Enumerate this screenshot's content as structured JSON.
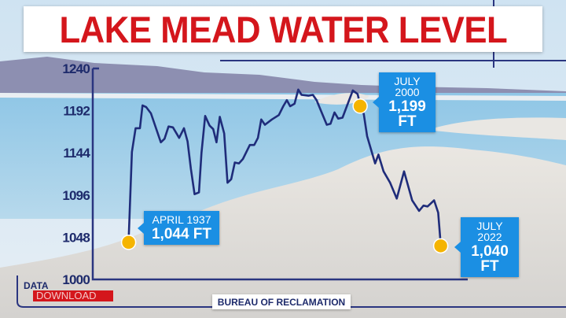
{
  "title": "LAKE MEAD WATER LEVEL",
  "source": "BUREAU OF RECLAMATION",
  "logo": {
    "line1": "DATA",
    "line2": "DOWNLOAD"
  },
  "colors": {
    "title": "#d4161c",
    "line": "#1f2c7a",
    "callout": "#1b8fe3",
    "marker": "#f5b400"
  },
  "chart_data": {
    "type": "line",
    "title": "LAKE MEAD WATER LEVEL",
    "xlabel": "",
    "ylabel": "",
    "ylim": [
      1000,
      1240
    ],
    "yticks": [
      1000,
      1048,
      1096,
      1144,
      1192,
      1240
    ],
    "xlim": [
      1928,
      2030
    ],
    "grid": false,
    "series": [
      {
        "x": [
          1937.3,
          1938.2,
          1939.2,
          1940.4,
          1941.1,
          1942.1,
          1943.4,
          1946.1,
          1947.1,
          1948.2,
          1949.4,
          1951.1,
          1952.4,
          1953.4,
          1954.3,
          1955.3,
          1956.5,
          1957.2,
          1958.2,
          1959.4,
          1960.4,
          1961.3,
          1962.2,
          1963.4,
          1964.3,
          1965.3,
          1966.3,
          1967.4,
          1968.5,
          1970.4,
          1971.6,
          1972.6,
          1973.5,
          1974.5,
          1976.4,
          1978.3,
          1979.5,
          1980.5,
          1981.4,
          1982.6,
          1983.6,
          1984.5,
          1986.4,
          1987.6,
          1988.6,
          1989.9,
          1991.4,
          1992.4,
          1993.5,
          1994.5,
          1995.7,
          1998.5,
          1999.8,
          2000.5,
          2001.5,
          2002.4,
          2004.6,
          2005.5,
          2006.9,
          2008.7,
          2010.5,
          2012.5,
          2014.7,
          2016.6,
          2017.8,
          2018.9,
          2020.7,
          2021.8,
          2022.5
        ],
        "y": [
          1044,
          1145,
          1172,
          1172,
          1198,
          1196,
          1189,
          1156,
          1160,
          1174,
          1173,
          1161,
          1172,
          1157,
          1126,
          1097,
          1099,
          1144,
          1186,
          1175,
          1171,
          1156,
          1185,
          1166,
          1110,
          1114,
          1133,
          1132,
          1137,
          1153,
          1153,
          1161,
          1182,
          1176,
          1182,
          1187,
          1197,
          1204,
          1197,
          1200,
          1216,
          1210,
          1209,
          1210,
          1204,
          1191,
          1176,
          1177,
          1190,
          1183,
          1184,
          1215,
          1211,
          1199,
          1188,
          1163,
          1132,
          1142,
          1123,
          1110,
          1092,
          1123,
          1090,
          1078,
          1084,
          1083,
          1090,
          1076,
          1040
        ]
      }
    ],
    "annotations": [
      {
        "date": "APRIL 1937",
        "value": "1,044 FT",
        "x": 1937.3,
        "y": 1044
      },
      {
        "date": "JULY 2000",
        "value": "1,199 FT",
        "x": 2000.5,
        "y": 1199
      },
      {
        "date": "JULY 2022",
        "value": "1,040 FT",
        "x": 2022.5,
        "y": 1040
      }
    ]
  }
}
